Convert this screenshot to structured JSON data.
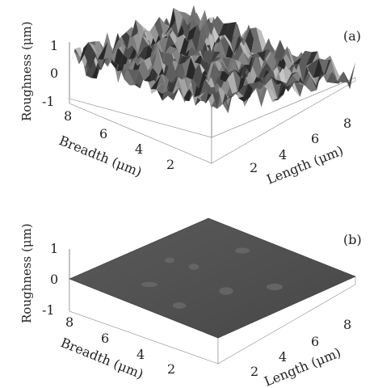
{
  "chart_data": [
    {
      "type": "surface",
      "panel_label": "(a)",
      "zlabel": "Roughness (μm)",
      "xlabel": "Length (μm)",
      "ylabel": "Breadth (μm)",
      "zticks": [
        "1",
        "0",
        "-1"
      ],
      "xticks": [
        "2",
        "4",
        "6",
        "8"
      ],
      "yticks": [
        "8",
        "6",
        "4",
        "2"
      ],
      "zlim": [
        -1,
        1
      ],
      "xlim": [
        0,
        9
      ],
      "ylim": [
        0,
        9
      ],
      "roughness_amplitude": 0.45,
      "surface_color": "#6f6f6f"
    },
    {
      "type": "surface",
      "panel_label": "(b)",
      "zlabel": "Roughness (μm)",
      "xlabel": "Length (μm)",
      "ylabel": "Breadth (μm)",
      "zticks": [
        "1",
        "0",
        "-1"
      ],
      "xticks": [
        "2",
        "4",
        "6",
        "8"
      ],
      "yticks": [
        "8",
        "6",
        "4",
        "2"
      ],
      "zlim": [
        -1,
        1
      ],
      "xlim": [
        0,
        9
      ],
      "ylim": [
        0,
        9
      ],
      "roughness_amplitude": 0.05,
      "surface_color": "#4c4c4c"
    }
  ]
}
